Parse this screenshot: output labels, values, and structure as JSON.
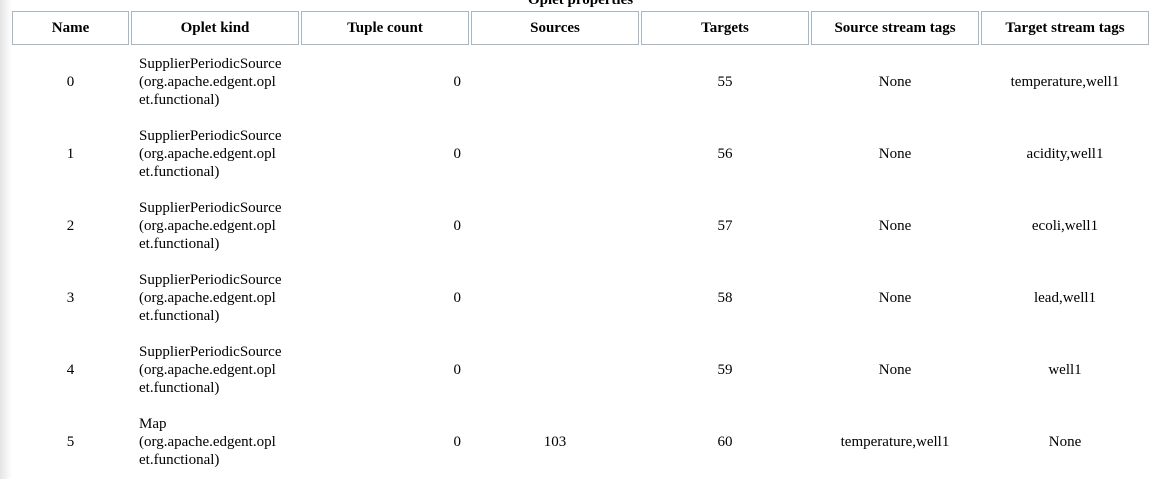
{
  "caption": "Oplet properties",
  "columns": [
    "Name",
    "Oplet kind",
    "Tuple count",
    "Sources",
    "Targets",
    "Source stream tags",
    "Target stream tags"
  ],
  "rows": [
    {
      "name": "0",
      "kind": "SupplierPeriodicSource\n(org.apache.edgent.opl\net.functional)",
      "tuple_count": "0",
      "sources": "",
      "targets": "55",
      "source_tags": "None",
      "target_tags": "temperature,well1"
    },
    {
      "name": "1",
      "kind": "SupplierPeriodicSource\n(org.apache.edgent.opl\net.functional)",
      "tuple_count": "0",
      "sources": "",
      "targets": "56",
      "source_tags": "None",
      "target_tags": "acidity,well1"
    },
    {
      "name": "2",
      "kind": "SupplierPeriodicSource\n(org.apache.edgent.opl\net.functional)",
      "tuple_count": "0",
      "sources": "",
      "targets": "57",
      "source_tags": "None",
      "target_tags": "ecoli,well1"
    },
    {
      "name": "3",
      "kind": "SupplierPeriodicSource\n(org.apache.edgent.opl\net.functional)",
      "tuple_count": "0",
      "sources": "",
      "targets": "58",
      "source_tags": "None",
      "target_tags": "lead,well1"
    },
    {
      "name": "4",
      "kind": "SupplierPeriodicSource\n(org.apache.edgent.opl\net.functional)",
      "tuple_count": "0",
      "sources": "",
      "targets": "59",
      "source_tags": "None",
      "target_tags": "well1"
    },
    {
      "name": "5",
      "kind": "Map\n(org.apache.edgent.opl\net.functional)",
      "tuple_count": "0",
      "sources": "103",
      "targets": "60",
      "source_tags": "temperature,well1",
      "target_tags": "None"
    }
  ]
}
